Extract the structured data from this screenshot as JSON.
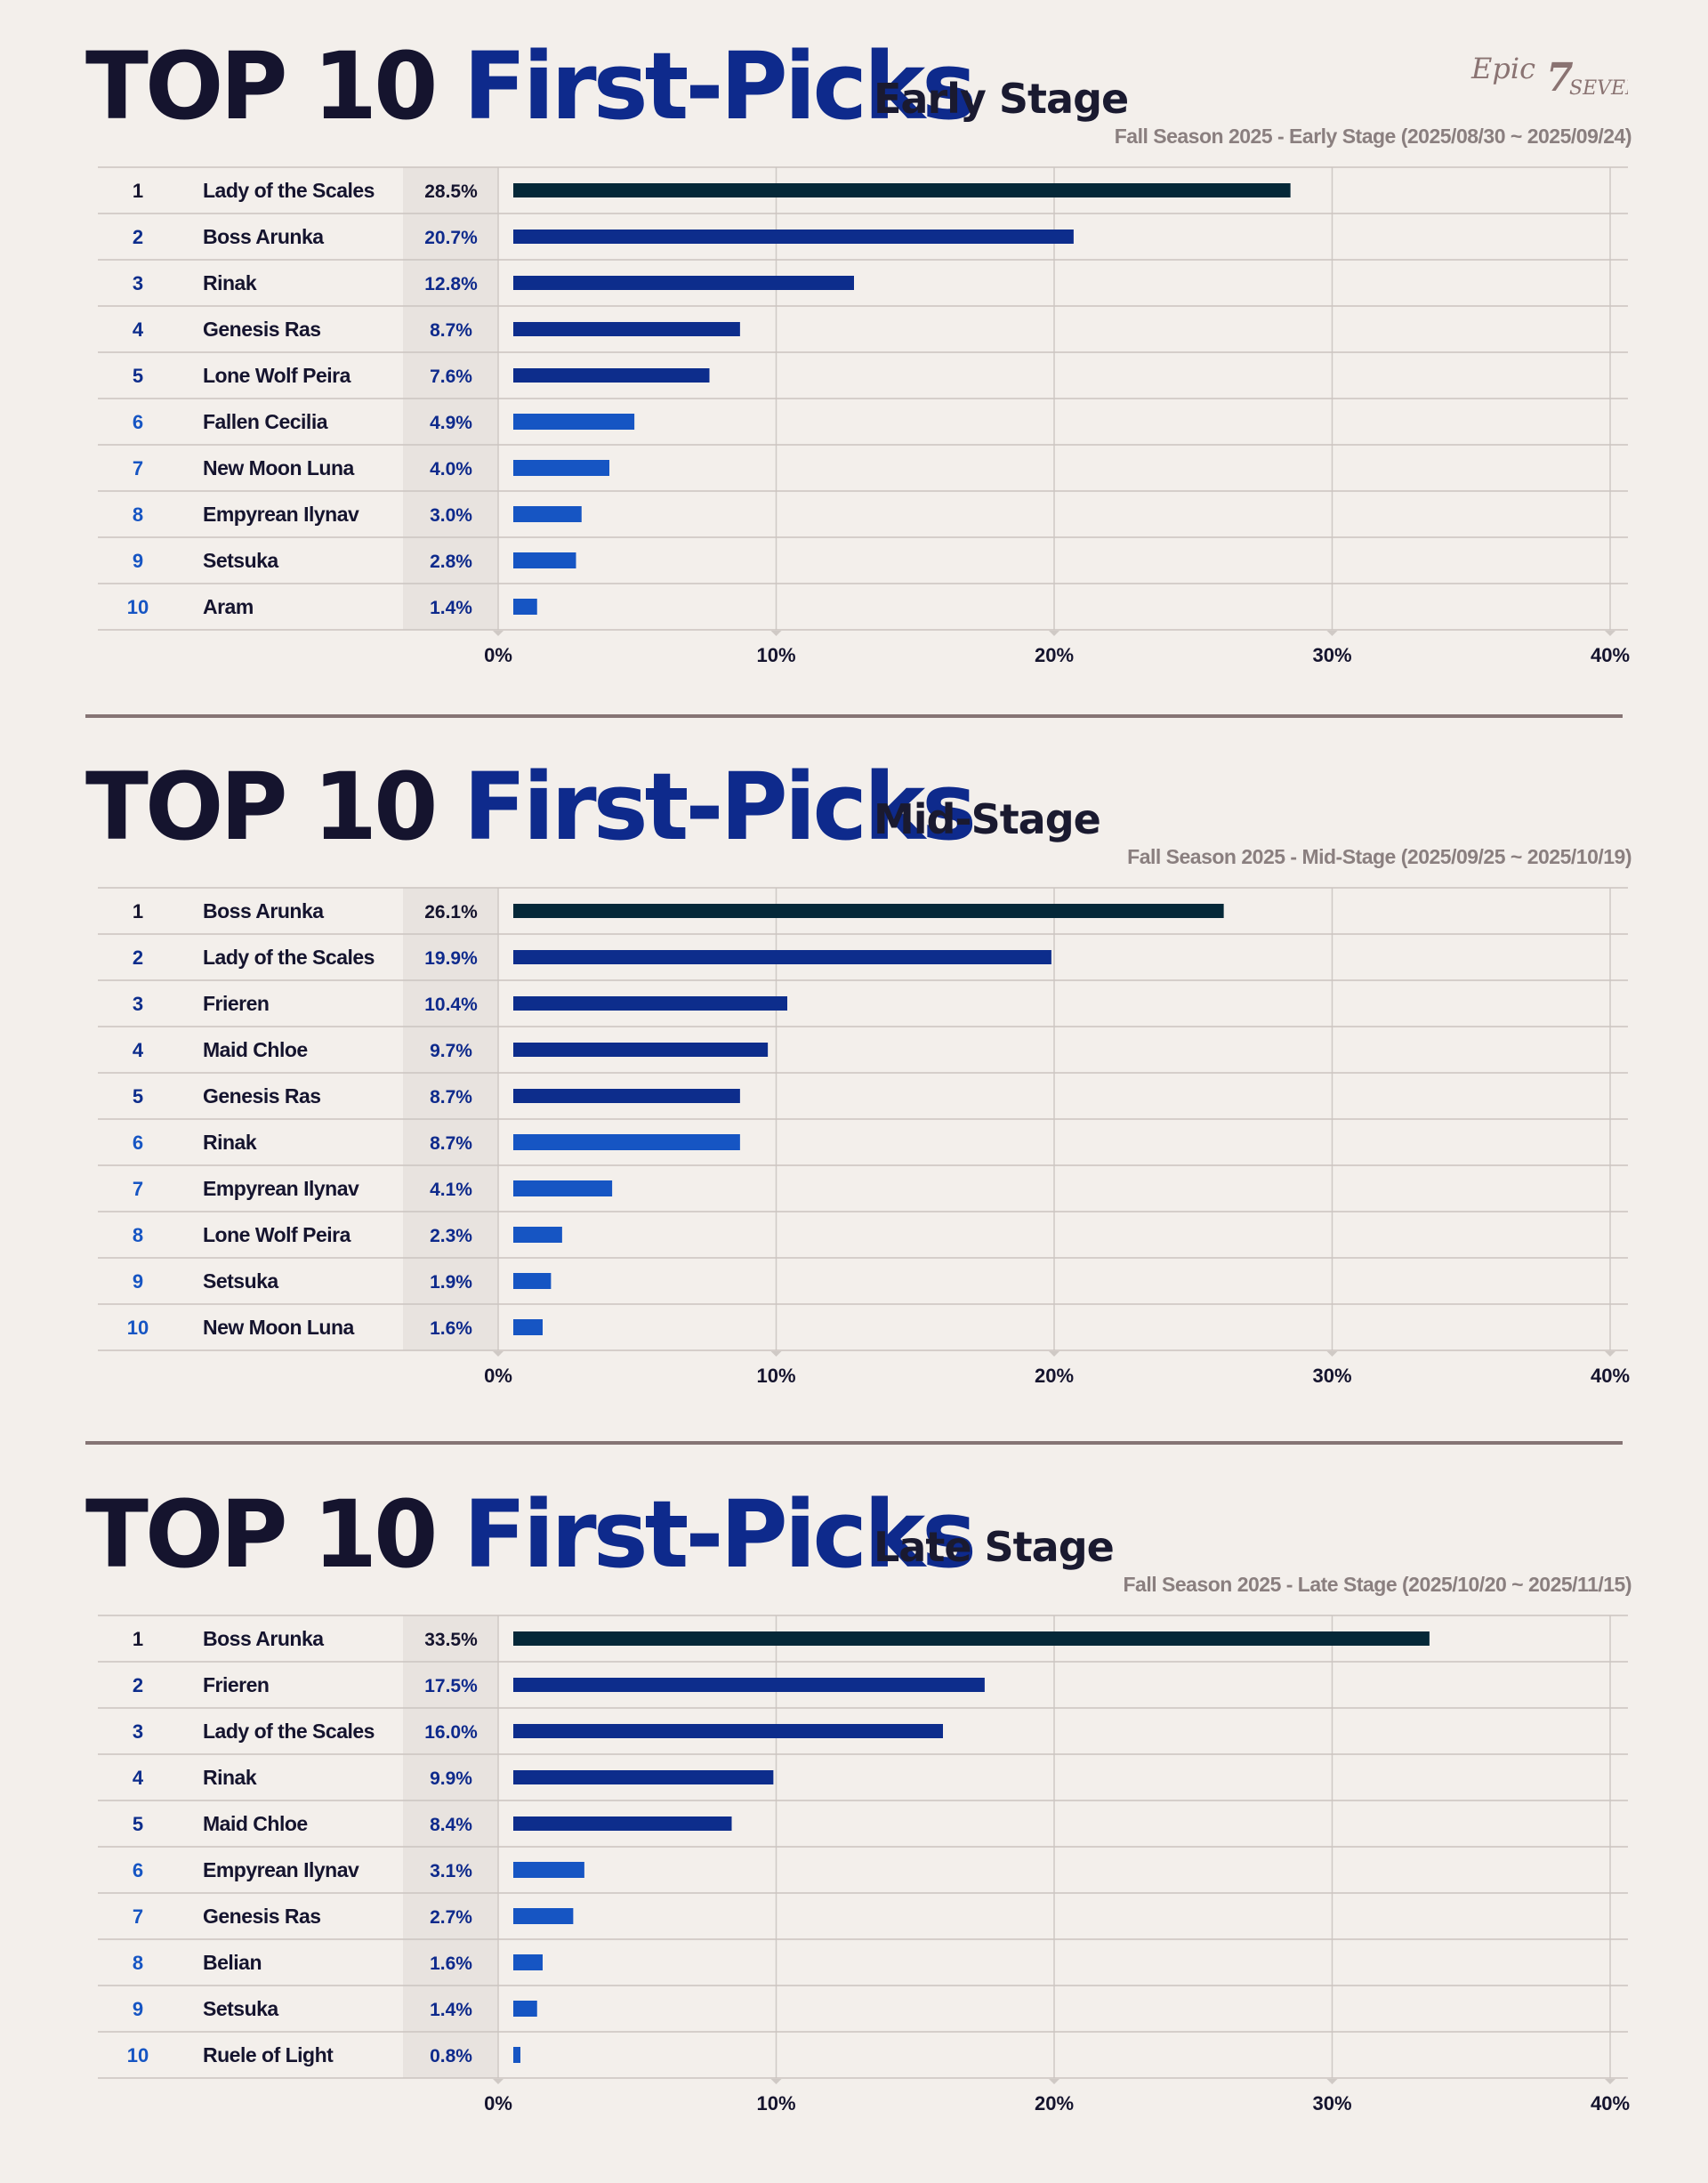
{
  "colors": {
    "bar_rank1": "#052838",
    "bar_rank2_5": "#0d2d8c",
    "bar_rank6_10": "#1655c3",
    "rank_top5": "#0d2d8c",
    "rank_bottom5": "#1655c3",
    "pct_top": "#15142e",
    "pct_other": "#0e2a8c"
  },
  "logo": {
    "text_epic": "Epic",
    "text_seven_num": "7",
    "text_seven": "SEVEN"
  },
  "sections": [
    {
      "title_part1": "TOP 10",
      "title_part2": "First-Picks",
      "stage": "Early Stage",
      "subtitle": "Fall Season 2025 - Early Stage (2025/08/30 ~ 2025/09/24)"
    },
    {
      "title_part1": "TOP 10",
      "title_part2": "First-Picks",
      "stage": "Mid-Stage",
      "subtitle": "Fall Season 2025 - Mid-Stage (2025/09/25 ~ 2025/10/19)"
    },
    {
      "title_part1": "TOP 10",
      "title_part2": "First-Picks",
      "stage": "Late Stage",
      "subtitle": "Fall Season 2025 - Late Stage (2025/10/20 ~ 2025/11/15)"
    }
  ],
  "chart_data": [
    {
      "type": "bar",
      "orientation": "horizontal",
      "title": "TOP 10 First-Picks Early Stage",
      "subtitle": "Fall Season 2025 - Early Stage (2025/08/30 ~ 2025/09/24)",
      "ranks": [
        "1",
        "2",
        "3",
        "4",
        "5",
        "6",
        "7",
        "8",
        "9",
        "10"
      ],
      "categories": [
        "Lady of the Scales",
        "Boss Arunka",
        "Rinak",
        "Genesis Ras",
        "Lone Wolf Peira",
        "Fallen Cecilia",
        "New Moon Luna",
        "Empyrean Ilynav",
        "Setsuka",
        "Aram"
      ],
      "values": [
        28.5,
        20.7,
        12.8,
        8.7,
        7.6,
        4.9,
        4.0,
        3.0,
        2.8,
        1.4
      ],
      "value_labels": [
        "28.5%",
        "20.7%",
        "12.8%",
        "8.7%",
        "7.6%",
        "4.9%",
        "4.0%",
        "3.0%",
        "2.8%",
        "1.4%"
      ],
      "xlim": [
        0,
        40
      ],
      "x_ticks": [
        "0%",
        "10%",
        "20%",
        "30%",
        "40%"
      ],
      "grid": true
    },
    {
      "type": "bar",
      "orientation": "horizontal",
      "title": "TOP 10 First-Picks Mid-Stage",
      "subtitle": "Fall Season 2025 - Mid-Stage (2025/09/25 ~ 2025/10/19)",
      "ranks": [
        "1",
        "2",
        "3",
        "4",
        "5",
        "6",
        "7",
        "8",
        "9",
        "10"
      ],
      "categories": [
        "Boss Arunka",
        "Lady of the Scales",
        "Frieren",
        "Maid Chloe",
        "Genesis Ras",
        "Rinak",
        "Empyrean Ilynav",
        "Lone Wolf Peira",
        "Setsuka",
        "New Moon Luna"
      ],
      "values": [
        26.1,
        19.9,
        10.4,
        9.7,
        8.7,
        8.7,
        4.1,
        2.3,
        1.9,
        1.6
      ],
      "value_labels": [
        "26.1%",
        "19.9%",
        "10.4%",
        "9.7%",
        "8.7%",
        "8.7%",
        "4.1%",
        "2.3%",
        "1.9%",
        "1.6%"
      ],
      "xlim": [
        0,
        40
      ],
      "x_ticks": [
        "0%",
        "10%",
        "20%",
        "30%",
        "40%"
      ],
      "grid": true
    },
    {
      "type": "bar",
      "orientation": "horizontal",
      "title": "TOP 10 First-Picks Late Stage",
      "subtitle": "Fall Season 2025 - Late Stage (2025/10/20 ~ 2025/11/15)",
      "ranks": [
        "1",
        "2",
        "3",
        "4",
        "5",
        "6",
        "7",
        "8",
        "9",
        "10"
      ],
      "categories": [
        "Boss Arunka",
        "Frieren",
        "Lady of the Scales",
        "Rinak",
        "Maid Chloe",
        "Empyrean Ilynav",
        "Genesis Ras",
        "Belian",
        "Setsuka",
        "Ruele of Light"
      ],
      "values": [
        33.5,
        17.5,
        16.0,
        9.9,
        8.4,
        3.1,
        2.7,
        1.6,
        1.4,
        0.8
      ],
      "value_labels": [
        "33.5%",
        "17.5%",
        "16.0%",
        "9.9%",
        "8.4%",
        "3.1%",
        "2.7%",
        "1.6%",
        "1.4%",
        "0.8%"
      ],
      "xlim": [
        0,
        40
      ],
      "x_ticks": [
        "0%",
        "10%",
        "20%",
        "30%",
        "40%"
      ],
      "grid": true
    }
  ]
}
